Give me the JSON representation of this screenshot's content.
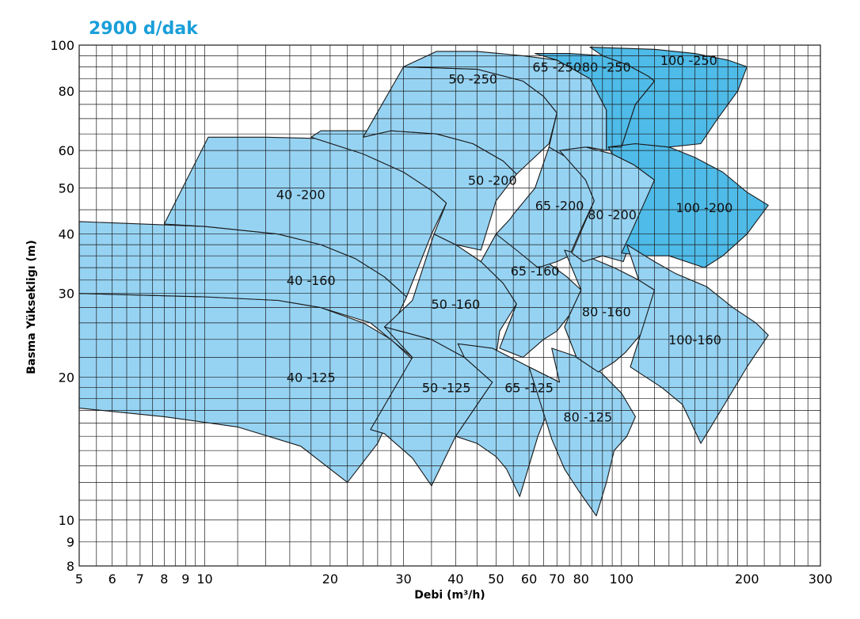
{
  "chart_data": {
    "type": "area",
    "title": "2900  d/dak",
    "xlabel": "Debi (m³/h)",
    "ylabel": "Basma Yüksekligı (m)",
    "xscale": "log",
    "yscale": "log",
    "xlim": [
      5,
      300
    ],
    "ylim": [
      8,
      100
    ],
    "x_ticks": [
      5,
      6,
      7,
      8,
      9,
      10,
      20,
      30,
      40,
      50,
      60,
      70,
      80,
      100,
      200,
      300
    ],
    "x_tick_labels": [
      "5",
      "6",
      "7",
      "8",
      "9",
      "10",
      "20",
      "30",
      "40",
      "50",
      "60",
      "70",
      "80",
      "100",
      "200",
      "300"
    ],
    "y_ticks": [
      8,
      9,
      10,
      20,
      30,
      40,
      50,
      60,
      80,
      100
    ],
    "y_tick_labels": [
      "8",
      "9",
      "10",
      "20",
      "30",
      "40",
      "50",
      "60",
      "80",
      "100"
    ],
    "grid": true,
    "colors": {
      "region": "#96d3f3",
      "region_dark": "#4fbbe8",
      "outline": "#1a1a1a",
      "title": "#1a9fd9"
    },
    "series": [
      {
        "name": "40 -125",
        "label_at": [
          18,
          20
        ],
        "color": "#96d3f3",
        "polygon": [
          [
            5,
            30
          ],
          [
            10,
            29.5
          ],
          [
            15,
            29
          ],
          [
            19,
            28
          ],
          [
            24,
            26
          ],
          [
            28,
            24
          ],
          [
            32,
            21.5
          ],
          [
            26,
            14.5
          ],
          [
            22,
            12
          ],
          [
            17,
            14.3
          ],
          [
            12,
            15.7
          ],
          [
            8,
            16.5
          ],
          [
            5,
            17.2
          ]
        ]
      },
      {
        "name": "40 -160",
        "label_at": [
          18,
          32
        ],
        "color": "#96d3f3",
        "polygon": [
          [
            5,
            42.5
          ],
          [
            10,
            41.5
          ],
          [
            15,
            40
          ],
          [
            19,
            38
          ],
          [
            23,
            35.5
          ],
          [
            27,
            32.5
          ],
          [
            30.5,
            29.5
          ],
          [
            28.5,
            26
          ],
          [
            31.5,
            22
          ],
          [
            25,
            26
          ],
          [
            19,
            28
          ],
          [
            15,
            29
          ],
          [
            10,
            29.5
          ],
          [
            5,
            30
          ]
        ]
      },
      {
        "name": "40 -200",
        "label_at": [
          17,
          48.5
        ],
        "color": "#96d3f3",
        "polygon": [
          [
            8,
            42
          ],
          [
            10.2,
            64
          ],
          [
            14,
            64
          ],
          [
            20,
            63.5
          ],
          [
            26,
            60
          ],
          [
            31,
            55
          ],
          [
            35.5,
            49
          ],
          [
            38,
            46.5
          ],
          [
            35,
            40
          ],
          [
            30.5,
            29.5
          ],
          [
            27,
            32.5
          ],
          [
            23,
            35.5
          ],
          [
            19,
            38
          ],
          [
            15,
            40
          ],
          [
            10,
            41.5
          ],
          [
            8,
            42
          ]
        ]
      },
      {
        "name": "50 -125",
        "label_at": [
          38,
          19
        ],
        "color": "#96d3f3",
        "polygon": [
          [
            27,
            25.5
          ],
          [
            35,
            24
          ],
          [
            42,
            22
          ],
          [
            49,
            19.5
          ],
          [
            40,
            15
          ],
          [
            35,
            11.8
          ],
          [
            31.5,
            13.5
          ],
          [
            27,
            15.2
          ],
          [
            25,
            15.5
          ],
          [
            31.5,
            22
          ]
        ]
      },
      {
        "name": "50 -160",
        "label_at": [
          40,
          28.5
        ],
        "color": "#96d3f3",
        "polygon": [
          [
            35.5,
            40
          ],
          [
            40,
            38
          ],
          [
            46,
            35
          ],
          [
            52,
            31.5
          ],
          [
            56,
            28.5
          ],
          [
            51,
            25
          ],
          [
            49,
            19.5
          ],
          [
            42,
            22
          ],
          [
            35,
            24
          ],
          [
            27,
            25.5
          ],
          [
            31.5,
            29
          ]
        ]
      },
      {
        "name": "50 -200",
        "label_at": [
          49,
          52
        ],
        "color": "#96d3f3",
        "polygon": [
          [
            18,
            64
          ],
          [
            19,
            66
          ],
          [
            28,
            66
          ],
          [
            36,
            65
          ],
          [
            44,
            62
          ],
          [
            52,
            57
          ],
          [
            56,
            53.5
          ],
          [
            50,
            47
          ],
          [
            46,
            37
          ],
          [
            40,
            38
          ],
          [
            35.5,
            40
          ],
          [
            38,
            46.5
          ],
          [
            35.5,
            49
          ],
          [
            30,
            54
          ],
          [
            24,
            59
          ],
          [
            18,
            64
          ]
        ]
      },
      {
        "name": "50 -250",
        "label_at": [
          44,
          85
        ],
        "color": "#96d3f3",
        "polygon": [
          [
            24,
            64
          ],
          [
            30,
            90
          ],
          [
            45,
            89
          ],
          [
            58,
            84
          ],
          [
            65,
            78
          ],
          [
            70,
            72
          ],
          [
            67,
            62
          ],
          [
            56,
            53.5
          ],
          [
            52,
            57
          ],
          [
            44,
            62
          ],
          [
            36,
            65
          ],
          [
            28,
            66
          ],
          [
            24,
            64
          ]
        ]
      },
      {
        "name": "65 -125",
        "label_at": [
          60,
          19
        ],
        "color": "#96d3f3",
        "polygon": [
          [
            40.5,
            23.5
          ],
          [
            49,
            23
          ],
          [
            60,
            21
          ],
          [
            71,
            19.5
          ],
          [
            63,
            15
          ],
          [
            57,
            11.2
          ],
          [
            53,
            12.8
          ],
          [
            50,
            13.6
          ],
          [
            45,
            14.5
          ],
          [
            40,
            15
          ],
          [
            49,
            19.5
          ],
          [
            42,
            22
          ]
        ]
      },
      {
        "name": "65 -160",
        "label_at": [
          62,
          33.5
        ],
        "color": "#96d3f3",
        "polygon": [
          [
            50,
            40
          ],
          [
            58,
            38
          ],
          [
            66,
            35
          ],
          [
            74,
            32.5
          ],
          [
            80,
            30.5
          ],
          [
            75,
            27
          ],
          [
            70,
            25
          ],
          [
            65,
            24
          ],
          [
            58,
            22
          ],
          [
            51,
            23
          ],
          [
            56,
            28.5
          ],
          [
            52,
            31.5
          ],
          [
            46,
            35
          ]
        ]
      },
      {
        "name": "65 -200",
        "label_at": [
          71,
          46
        ],
        "color": "#96d3f3",
        "polygon": [
          [
            55,
            44
          ],
          [
            62,
            50
          ],
          [
            67,
            61
          ],
          [
            74,
            58
          ],
          [
            82,
            52
          ],
          [
            86,
            47
          ],
          [
            80,
            41
          ],
          [
            75,
            36
          ],
          [
            70,
            35
          ],
          [
            63,
            34
          ],
          [
            56,
            37
          ],
          [
            50,
            40
          ],
          [
            54,
            43
          ]
        ]
      },
      {
        "name": "65 -250",
        "label_at": [
          70,
          90
        ],
        "color": "#96d3f3",
        "polygon": [
          [
            36,
            97
          ],
          [
            45,
            97
          ],
          [
            58,
            95
          ],
          [
            70,
            93
          ],
          [
            84,
            85
          ],
          [
            92,
            73
          ],
          [
            92,
            60
          ],
          [
            83,
            61
          ],
          [
            74,
            58
          ],
          [
            67,
            61
          ],
          [
            70,
            72
          ],
          [
            65,
            78
          ],
          [
            58,
            84
          ],
          [
            45,
            89
          ],
          [
            30,
            90
          ]
        ]
      },
      {
        "name": "80 -125",
        "label_at": [
          83,
          16.5
        ],
        "color": "#96d3f3",
        "polygon": [
          [
            68,
            23
          ],
          [
            79,
            22
          ],
          [
            89,
            20.5
          ],
          [
            100,
            18.5
          ],
          [
            108,
            16.5
          ],
          [
            103,
            15
          ],
          [
            96,
            14
          ],
          [
            92,
            12
          ],
          [
            87,
            10.2
          ],
          [
            79,
            11.5
          ],
          [
            73,
            12.8
          ],
          [
            68,
            14.8
          ],
          [
            60,
            21
          ],
          [
            71,
            19.5
          ]
        ]
      },
      {
        "name": "80 -160",
        "label_at": [
          92,
          27.5
        ],
        "color": "#96d3f3",
        "polygon": [
          [
            73,
            37
          ],
          [
            82,
            36
          ],
          [
            96,
            34
          ],
          [
            110,
            32
          ],
          [
            120,
            30.5
          ],
          [
            113,
            25
          ],
          [
            102,
            22.5
          ],
          [
            96,
            21.5
          ],
          [
            88,
            20.5
          ],
          [
            78,
            22
          ],
          [
            73,
            25.5
          ],
          [
            75,
            27
          ],
          [
            80,
            30.5
          ]
        ]
      },
      {
        "name": "80 -200",
        "label_at": [
          95,
          44
        ],
        "color": "#96d3f3",
        "polygon": [
          [
            71,
            60
          ],
          [
            82,
            61
          ],
          [
            95,
            59
          ],
          [
            107,
            56
          ],
          [
            120,
            52
          ],
          [
            110,
            43
          ],
          [
            101,
            35
          ],
          [
            90,
            36
          ],
          [
            81,
            35
          ],
          [
            76,
            36.5
          ],
          [
            86,
            47
          ],
          [
            82,
            52
          ]
        ]
      },
      {
        "name": "80 -250",
        "label_at": [
          92,
          90
        ],
        "color": "#4fbbe8",
        "polygon": [
          [
            62,
            96
          ],
          [
            75,
            96
          ],
          [
            90,
            95
          ],
          [
            103,
            91
          ],
          [
            116,
            86
          ],
          [
            120,
            84
          ],
          [
            108,
            75
          ],
          [
            100,
            61
          ],
          [
            92,
            60
          ],
          [
            92,
            73
          ],
          [
            84,
            85
          ],
          [
            70,
            93
          ]
        ]
      },
      {
        "name": "100 -200",
        "label_at": [
          158,
          45.5
        ],
        "color": "#4fbbe8",
        "polygon": [
          [
            93,
            61
          ],
          [
            108,
            62
          ],
          [
            130,
            61
          ],
          [
            150,
            58
          ],
          [
            175,
            54
          ],
          [
            200,
            49
          ],
          [
            225,
            46
          ],
          [
            200,
            40
          ],
          [
            175,
            36
          ],
          [
            158,
            34
          ],
          [
            130,
            36
          ],
          [
            112,
            36
          ],
          [
            100,
            36.5
          ],
          [
            105,
            40
          ],
          [
            120,
            52
          ],
          [
            107,
            56
          ],
          [
            95,
            59
          ]
        ]
      },
      {
        "name": "100 -250",
        "label_at": [
          145,
          93
        ],
        "color": "#4fbbe8",
        "polygon": [
          [
            84,
            99
          ],
          [
            100,
            98.5
          ],
          [
            120,
            98
          ],
          [
            150,
            96
          ],
          [
            180,
            93
          ],
          [
            200,
            90
          ],
          [
            190,
            80
          ],
          [
            170,
            70
          ],
          [
            155,
            62
          ],
          [
            130,
            61
          ],
          [
            108,
            62
          ],
          [
            93,
            61
          ],
          [
            100,
            61
          ],
          [
            108,
            75
          ],
          [
            120,
            84
          ],
          [
            116,
            86
          ],
          [
            103,
            91
          ],
          [
            90,
            95
          ],
          [
            84,
            99
          ]
        ]
      },
      {
        "name": "100-160",
        "label_at": [
          150,
          24
        ],
        "color": "#96d3f3",
        "polygon": [
          [
            103,
            38
          ],
          [
            120,
            35
          ],
          [
            135,
            33
          ],
          [
            160,
            31
          ],
          [
            185,
            28
          ],
          [
            210,
            26
          ],
          [
            225,
            24.5
          ],
          [
            200,
            21
          ],
          [
            180,
            18
          ],
          [
            155,
            14.5
          ],
          [
            140,
            17.5
          ],
          [
            125,
            19
          ],
          [
            105,
            21
          ],
          [
            120,
            30.5
          ],
          [
            110,
            32
          ]
        ]
      }
    ]
  }
}
